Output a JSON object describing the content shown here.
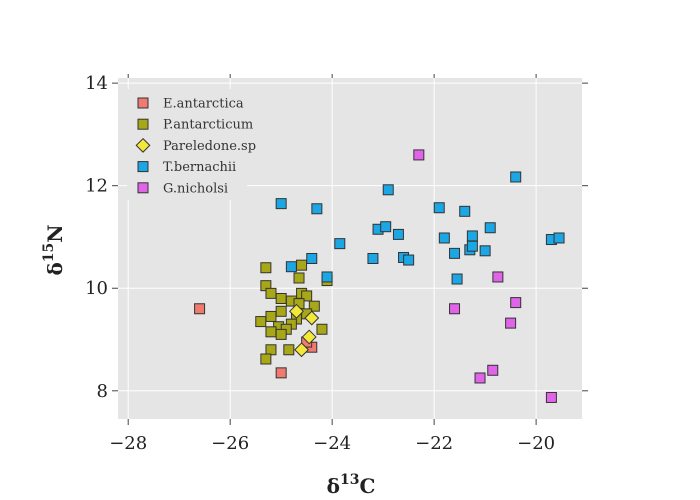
{
  "chart_data": {
    "type": "scatter",
    "title": "",
    "xlabel": {
      "base": "δ",
      "sup": "13",
      "tail": "C"
    },
    "ylabel": {
      "base": "δ",
      "sup": "15",
      "tail": "N"
    },
    "xlim": [
      -28.2,
      -19.1
    ],
    "ylim": [
      7.45,
      14.1
    ],
    "xticks": [
      -28,
      -26,
      -24,
      -22,
      -20
    ],
    "yticks": [
      8,
      10,
      12,
      14
    ],
    "x_tick_labels": [
      "−28",
      "−26",
      "−24",
      "−22",
      "−20"
    ],
    "y_tick_labels": [
      "8",
      "10",
      "12",
      "14"
    ],
    "grid": true,
    "legend_position": "top-left",
    "series": [
      {
        "name": "E.antarctica",
        "marker": "square",
        "color": "#f07a70",
        "points": [
          [
            -26.6,
            9.6
          ],
          [
            -25.0,
            8.35
          ],
          [
            -24.4,
            8.85
          ],
          [
            -24.5,
            8.95
          ]
        ]
      },
      {
        "name": "P.antarcticum",
        "marker": "square",
        "color": "#a7a718",
        "points": [
          [
            -25.3,
            10.4
          ],
          [
            -25.3,
            10.05
          ],
          [
            -25.2,
            9.9
          ],
          [
            -25.0,
            9.8
          ],
          [
            -24.6,
            10.45
          ],
          [
            -24.65,
            10.2
          ],
          [
            -24.1,
            10.15
          ],
          [
            -24.6,
            9.9
          ],
          [
            -24.5,
            9.85
          ],
          [
            -24.8,
            9.75
          ],
          [
            -24.65,
            9.7
          ],
          [
            -24.35,
            9.65
          ],
          [
            -24.5,
            9.5
          ],
          [
            -25.0,
            9.55
          ],
          [
            -24.7,
            9.4
          ],
          [
            -25.2,
            9.45
          ],
          [
            -24.8,
            9.3
          ],
          [
            -25.4,
            9.35
          ],
          [
            -25.05,
            9.25
          ],
          [
            -24.9,
            9.2
          ],
          [
            -25.2,
            9.15
          ],
          [
            -25.0,
            9.1
          ],
          [
            -24.2,
            9.2
          ],
          [
            -25.2,
            8.8
          ],
          [
            -24.85,
            8.8
          ],
          [
            -25.3,
            8.62
          ]
        ]
      },
      {
        "name": "Pareledone.sp",
        "marker": "diamond",
        "color": "#f2e83a",
        "points": [
          [
            -24.7,
            9.55
          ],
          [
            -24.4,
            9.42
          ],
          [
            -24.45,
            9.05
          ],
          [
            -24.6,
            8.8
          ]
        ]
      },
      {
        "name": "T.bernachii",
        "marker": "square",
        "color": "#1ca6e4",
        "points": [
          [
            -25.0,
            11.65
          ],
          [
            -24.3,
            11.55
          ],
          [
            -22.9,
            11.92
          ],
          [
            -20.4,
            12.17
          ],
          [
            -21.9,
            11.57
          ],
          [
            -21.4,
            11.5
          ],
          [
            -23.1,
            11.15
          ],
          [
            -22.95,
            11.2
          ],
          [
            -22.7,
            11.05
          ],
          [
            -20.9,
            11.18
          ],
          [
            -21.8,
            10.98
          ],
          [
            -21.25,
            11.02
          ],
          [
            -19.7,
            10.95
          ],
          [
            -19.55,
            10.98
          ],
          [
            -23.85,
            10.87
          ],
          [
            -21.3,
            10.75
          ],
          [
            -21.6,
            10.68
          ],
          [
            -21.25,
            10.82
          ],
          [
            -21.0,
            10.73
          ],
          [
            -24.4,
            10.58
          ],
          [
            -23.2,
            10.58
          ],
          [
            -22.6,
            10.6
          ],
          [
            -22.5,
            10.55
          ],
          [
            -24.8,
            10.42
          ],
          [
            -24.1,
            10.22
          ],
          [
            -21.55,
            10.18
          ]
        ]
      },
      {
        "name": "G.nicholsi",
        "marker": "square",
        "color": "#e064e8",
        "points": [
          [
            -22.3,
            12.6
          ],
          [
            -20.75,
            10.22
          ],
          [
            -20.4,
            9.72
          ],
          [
            -21.6,
            9.6
          ],
          [
            -20.5,
            9.32
          ],
          [
            -20.85,
            8.4
          ],
          [
            -21.1,
            8.25
          ],
          [
            -19.7,
            7.87
          ]
        ]
      }
    ]
  }
}
